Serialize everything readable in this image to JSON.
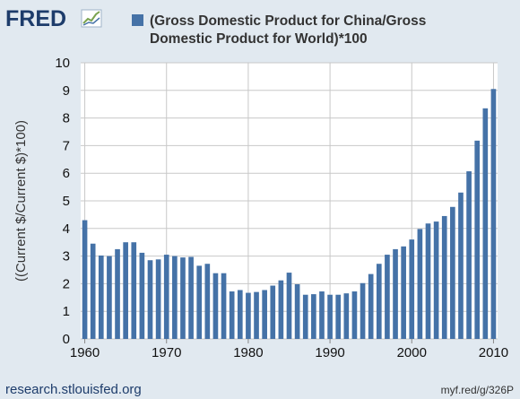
{
  "header": {
    "logo_text": "FRED",
    "logo_icon": "line-chart-icon"
  },
  "footer": {
    "source": "research.stlouisfed.org",
    "short_link": "myf.red/g/326P"
  },
  "colors": {
    "bar": "#4572a7",
    "background": "#e1e9f0",
    "plot_background": "#ffffff",
    "grid": "#c8c8c8",
    "logo": "#1d3c6b"
  },
  "chart_data": {
    "type": "bar",
    "title": "",
    "series": [
      {
        "name": "(Gross Domestic Product for China/Gross Domestic Product for World)*100",
        "legend_lines": [
          "(Gross Domestic Product for China/Gross",
          "Domestic Product for World)*100"
        ]
      }
    ],
    "x": [
      1960,
      1961,
      1962,
      1963,
      1964,
      1965,
      1966,
      1967,
      1968,
      1969,
      1970,
      1971,
      1972,
      1973,
      1974,
      1975,
      1976,
      1977,
      1978,
      1979,
      1980,
      1981,
      1982,
      1983,
      1984,
      1985,
      1986,
      1987,
      1988,
      1989,
      1990,
      1991,
      1992,
      1993,
      1994,
      1995,
      1996,
      1997,
      1998,
      1999,
      2000,
      2001,
      2002,
      2003,
      2004,
      2005,
      2006,
      2007,
      2008,
      2009,
      2010
    ],
    "values": [
      4.3,
      3.45,
      3.02,
      3.0,
      3.25,
      3.5,
      3.5,
      3.12,
      2.85,
      2.88,
      3.05,
      3.0,
      2.95,
      2.97,
      2.65,
      2.72,
      2.38,
      2.38,
      1.72,
      1.77,
      1.67,
      1.7,
      1.77,
      1.93,
      2.12,
      2.4,
      1.98,
      1.6,
      1.62,
      1.72,
      1.6,
      1.6,
      1.65,
      1.72,
      2.02,
      2.35,
      2.72,
      3.05,
      3.25,
      3.35,
      3.6,
      3.98,
      4.18,
      4.25,
      4.45,
      4.78,
      5.3,
      6.07,
      7.18,
      8.35,
      9.05
    ],
    "xlabel": "",
    "ylabel": "((Current $/Current $)*100)",
    "ylim": [
      0,
      10
    ],
    "yticks": [
      0,
      1,
      2,
      3,
      4,
      5,
      6,
      7,
      8,
      9,
      10
    ],
    "xticks": [
      1960,
      1970,
      1980,
      1990,
      2000,
      2010
    ],
    "grid": true,
    "legend": "top"
  }
}
